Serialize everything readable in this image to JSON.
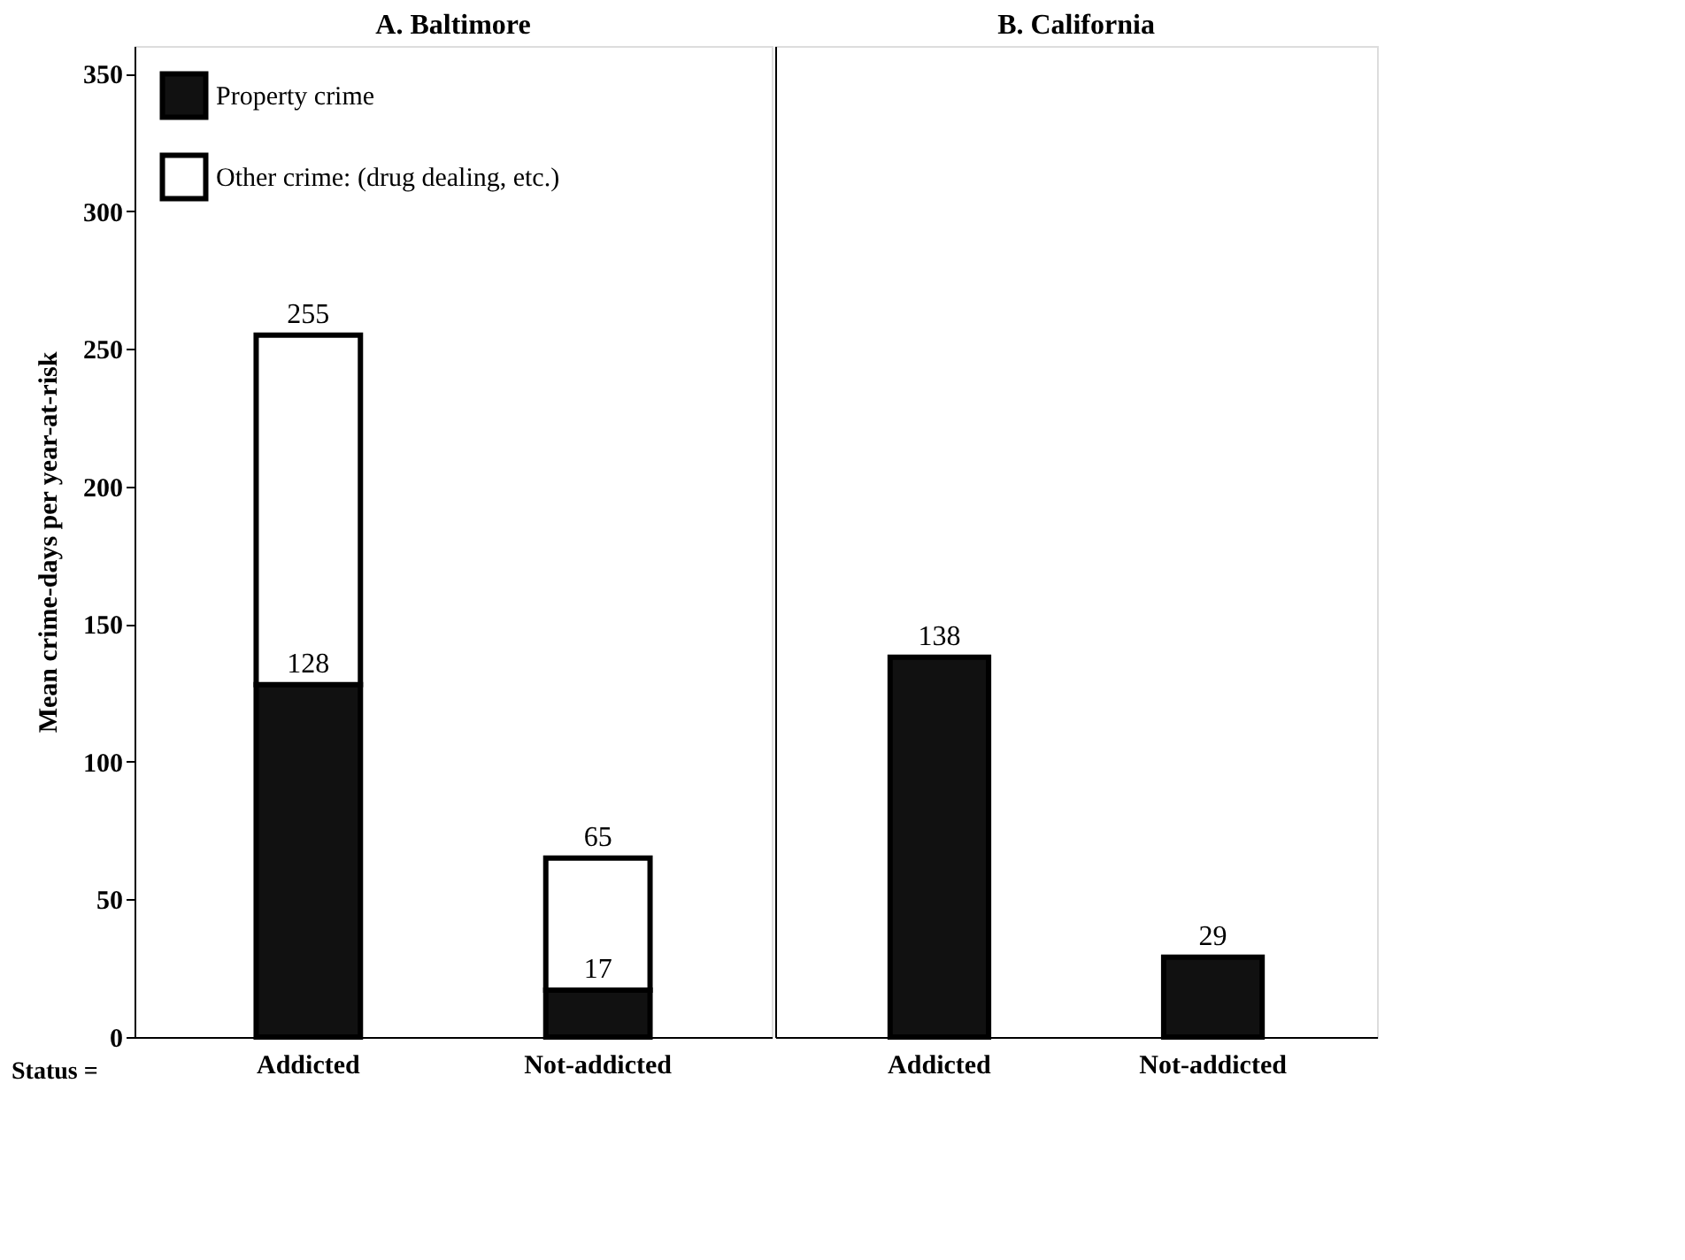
{
  "chart_data": [
    {
      "type": "bar",
      "title": "A. Baltimore",
      "xlabel": "Status =",
      "ylabel": "Mean crime-days per year-at-risk",
      "categories": [
        "Addicted",
        "Not-addicted"
      ],
      "stacked": true,
      "ylim": [
        0,
        360
      ],
      "yticks": [
        0,
        50,
        100,
        150,
        200,
        250,
        300,
        350
      ],
      "legend": "top left",
      "grid": false,
      "series": [
        {
          "name": "Property crime",
          "color": "#111111",
          "values": [
            128,
            17
          ],
          "data_labels": true
        },
        {
          "name": "Other crime: (drug dealing, etc.)",
          "color": "#ffffff",
          "values": [
            127,
            48
          ]
        }
      ],
      "totals": [
        "255",
        "65"
      ]
    },
    {
      "type": "bar",
      "title": "B. California",
      "categories": [
        "Addicted",
        "Not-addicted"
      ],
      "stacked": true,
      "ylim": [
        0,
        360
      ],
      "yticks": [
        0,
        50,
        100,
        150,
        200,
        250,
        300,
        350
      ],
      "tick_labels": "x",
      "legend": false,
      "grid": false,
      "series": [
        {
          "color": "#111111",
          "values": [
            138,
            29
          ],
          "data_labels": true
        }
      ]
    }
  ]
}
